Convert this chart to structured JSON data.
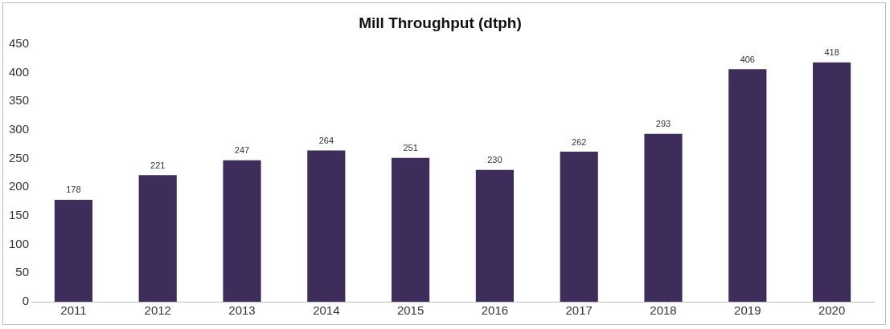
{
  "chart_data": {
    "type": "bar",
    "title": "Mill Throughput (dtph)",
    "categories": [
      "2011",
      "2012",
      "2013",
      "2014",
      "2015",
      "2016",
      "2017",
      "2018",
      "2019",
      "2020"
    ],
    "values": [
      178,
      221,
      247,
      264,
      251,
      230,
      262,
      293,
      406,
      418
    ],
    "color": "#3e2c5a",
    "ylim": [
      0,
      450
    ],
    "yticks": [
      0,
      50,
      100,
      150,
      200,
      250,
      300,
      350,
      400,
      450
    ],
    "grid": false,
    "legend": false,
    "data_labels": true
  }
}
